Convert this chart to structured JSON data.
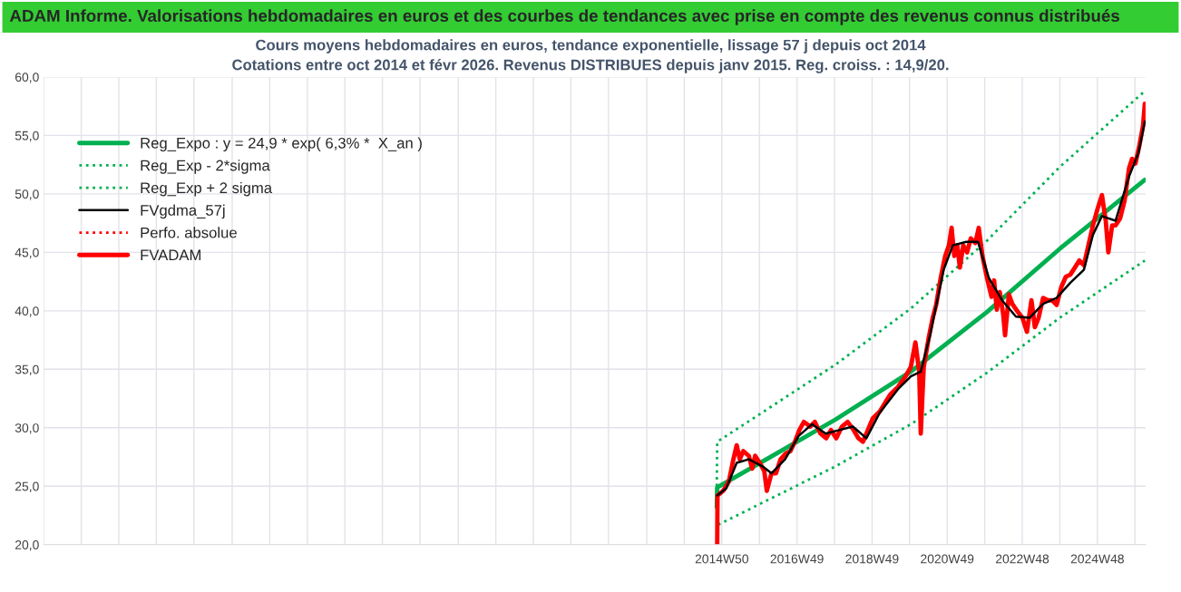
{
  "chart_data": {
    "type": "line",
    "title": "ADAM Informe. Valorisations hebdomadaires en euros et des courbes de tendances avec prise en compte des revenus connus distribués",
    "subtitle": "Cours moyens hebdomadaires en euros, tendance exponentielle, lissage 57 j depuis oct 2014\nCotations entre oct 2014 et févr 2026. Revenus DISTRIBUES depuis janv 2015. Reg. croiss. : 14,9/20.",
    "xlim": [
      "1996-12-09",
      "2026-03-07"
    ],
    "xticks": [
      {
        "value": "1996-12-09",
        "label": null
      },
      {
        "value": "1997-12-08",
        "label": null
      },
      {
        "value": "1998-12-07",
        "label": null
      },
      {
        "value": "1999-12-06",
        "label": null
      },
      {
        "value": "2000-12-04",
        "label": null
      },
      {
        "value": "2001-12-10",
        "label": null
      },
      {
        "value": "2002-12-09",
        "label": null
      },
      {
        "value": "2003-12-08",
        "label": null
      },
      {
        "value": "2004-12-06",
        "label": null
      },
      {
        "value": "2005-12-05",
        "label": null
      },
      {
        "value": "2006-12-04",
        "label": null
      },
      {
        "value": "2007-12-10",
        "label": null
      },
      {
        "value": "2008-12-08",
        "label": null
      },
      {
        "value": "2009-12-07",
        "label": null
      },
      {
        "value": "2010-12-06",
        "label": null
      },
      {
        "value": "2011-12-05",
        "label": null
      },
      {
        "value": "2012-12-10",
        "label": null
      },
      {
        "value": "2013-12-09",
        "label": null
      },
      {
        "value": "2014-12-08",
        "label": "2014W50"
      },
      {
        "value": "2015-12-07",
        "label": null
      },
      {
        "value": "2016-12-05",
        "label": "2016W49"
      },
      {
        "value": "2017-12-04",
        "label": null
      },
      {
        "value": "2018-12-03",
        "label": "2018W49"
      },
      {
        "value": "2019-12-02",
        "label": null
      },
      {
        "value": "2020-11-30",
        "label": "2020W49"
      },
      {
        "value": "2021-11-29",
        "label": null
      },
      {
        "value": "2022-11-28",
        "label": "2022W48"
      },
      {
        "value": "2023-11-27",
        "label": null
      },
      {
        "value": "2024-11-25",
        "label": "2024W48"
      },
      {
        "value": "2025-11-24",
        "label": null
      }
    ],
    "ylim": [
      20,
      60
    ],
    "yticks": [
      {
        "value": 20,
        "label": "20,0"
      },
      {
        "value": 25,
        "label": "25,0"
      },
      {
        "value": 30,
        "label": "30,0"
      },
      {
        "value": 35,
        "label": "35,0"
      },
      {
        "value": 40,
        "label": "40,0"
      },
      {
        "value": 45,
        "label": "45,0"
      },
      {
        "value": 50,
        "label": "50,0"
      },
      {
        "value": 55,
        "label": "55,0"
      },
      {
        "value": 60,
        "label": "60,0"
      }
    ],
    "grid": true,
    "legend": "top left",
    "series": [
      {
        "name": "Reg_Expo : y = 24,9 * exp( 6,3% *  X_an )",
        "color": "#00b050",
        "line_style": "solid",
        "x": [
          "2014-10-20",
          "2014-10-24",
          "2015-12-17",
          "2017-12-14",
          "2019-12-14",
          "2021-12-21",
          "2023-11-26",
          "2026-02-28"
        ],
        "values": [
          23.2,
          24.9,
          27.0,
          30.7,
          34.8,
          39.9,
          45.3,
          51.2
        ]
      },
      {
        "name": "Reg_Exp - 2*sigma",
        "color": "#00b050",
        "line_style": "dotted",
        "x": [
          "2014-11-03",
          "2015-12-17",
          "2017-12-14",
          "2019-12-14",
          "2021-12-21",
          "2023-11-26",
          "2026-02-28"
        ],
        "values": [
          21.7,
          23.5,
          26.7,
          30.3,
          34.7,
          39.4,
          44.3
        ]
      },
      {
        "name": "Reg_Exp + 2 sigma",
        "color": "#00b050",
        "line_style": "dotted",
        "x": [
          "2014-10-20",
          "2014-10-24",
          "2015-12-17",
          "2017-12-14",
          "2019-12-14",
          "2021-12-21",
          "2023-11-26",
          "2026-02-28"
        ],
        "values": [
          25.0,
          28.8,
          31.2,
          35.4,
          40.2,
          46.0,
          52.3,
          58.8
        ]
      },
      {
        "name": "FVgdma_57j",
        "color": "#000000",
        "line_style": "solid",
        "x": [
          "2014-10-24",
          "2015-01-19",
          "2015-05-01",
          "2015-08-26",
          "2016-01-05",
          "2016-04-02",
          "2016-08-12",
          "2016-12-21",
          "2017-05-01",
          "2017-09-10",
          "2018-01-19",
          "2018-05-31",
          "2018-10-09",
          "2019-02-17",
          "2019-08-12",
          "2019-12-14",
          "2020-03-19",
          "2020-06-14",
          "2020-10-27",
          "2021-01-23",
          "2021-06-03",
          "2021-09-24",
          "2022-01-08",
          "2022-05-16",
          "2022-09-28",
          "2023-02-07",
          "2023-06-18",
          "2023-10-27",
          "2024-03-08",
          "2024-07-17",
          "2024-10-13",
          "2025-01-08",
          "2025-05-20",
          "2025-09-28",
          "2025-12-28",
          "2026-02-28"
        ],
        "values": [
          24.2,
          24.8,
          27.0,
          27.3,
          26.7,
          26.1,
          27.3,
          29.3,
          30.3,
          29.5,
          29.8,
          30.1,
          29.1,
          31.3,
          33.3,
          34.4,
          34.8,
          37.8,
          43.5,
          45.6,
          45.9,
          45.9,
          42.8,
          40.9,
          39.5,
          39.4,
          40.6,
          41.1,
          42.4,
          43.5,
          46.5,
          48.1,
          47.7,
          51.5,
          53.5,
          56.2
        ]
      },
      {
        "name": "Perfo. absolue",
        "color": "#ff0000",
        "line_style": "dotted"
      },
      {
        "name": "FVADAM",
        "color": "#ff0000",
        "line_style": "solid",
        "x": [
          "2014-10-24",
          "2014-10-27",
          "2014-12-21",
          "2015-02-14",
          "2015-03-30",
          "2015-05-01",
          "2015-05-31",
          "2015-07-03",
          "2015-08-26",
          "2015-09-28",
          "2015-10-27",
          "2015-12-10",
          "2016-01-23",
          "2016-02-17",
          "2016-04-02",
          "2016-05-16",
          "2016-06-29",
          "2016-08-19",
          "2016-10-02",
          "2016-11-15",
          "2016-12-28",
          "2017-02-10",
          "2017-04-13",
          "2017-05-27",
          "2017-07-21",
          "2017-09-14",
          "2017-10-31",
          "2017-12-21",
          "2018-02-14",
          "2018-04-10",
          "2018-05-31",
          "2018-07-24",
          "2018-09-06",
          "2018-10-09",
          "2018-12-10",
          "2019-02-17",
          "2019-04-13",
          "2019-06-03",
          "2019-08-12",
          "2019-10-24",
          "2019-12-14",
          "2020-01-27",
          "2020-03-04",
          "2020-03-19",
          "2020-04-17",
          "2020-05-31",
          "2020-07-13",
          "2020-08-15",
          "2020-09-28",
          "2020-11-11",
          "2020-12-17",
          "2021-01-12",
          "2021-02-07",
          "2021-03-08",
          "2021-04-02",
          "2021-05-05",
          "2021-06-11",
          "2021-07-17",
          "2021-08-30",
          "2021-10-02",
          "2021-11-07",
          "2021-12-21",
          "2022-02-03",
          "2022-02-28",
          "2022-03-26",
          "2022-04-24",
          "2022-05-27",
          "2022-06-14",
          "2022-07-21",
          "2022-08-23",
          "2022-10-16",
          "2022-11-29",
          "2023-01-12",
          "2023-02-25",
          "2023-03-30",
          "2023-05-05",
          "2023-06-18",
          "2023-08-01",
          "2023-09-14",
          "2023-10-27",
          "2023-12-10",
          "2024-01-23",
          "2024-03-08",
          "2024-04-21",
          "2024-06-03",
          "2024-07-17",
          "2024-08-30",
          "2024-10-13",
          "2024-11-26",
          "2025-01-08",
          "2025-02-14",
          "2025-03-11",
          "2025-04-17",
          "2025-05-20",
          "2025-07-03",
          "2025-08-15",
          "2025-09-28",
          "2025-10-27",
          "2025-11-29",
          "2026-01-05",
          "2026-02-10",
          "2026-02-28"
        ],
        "values": [
          20.0,
          24.2,
          24.6,
          25.4,
          27.3,
          28.5,
          27.3,
          28.0,
          27.6,
          26.5,
          27.6,
          27.0,
          26.3,
          24.6,
          26.1,
          26.1,
          27.3,
          27.8,
          28.0,
          28.8,
          29.8,
          30.5,
          30.1,
          30.5,
          29.5,
          29.1,
          29.8,
          29.1,
          30.1,
          30.5,
          29.9,
          29.1,
          28.8,
          29.5,
          30.8,
          31.4,
          32.2,
          32.9,
          33.5,
          34.4,
          35.2,
          37.3,
          34.8,
          29.5,
          35.2,
          37.5,
          39.4,
          40.5,
          42.8,
          44.7,
          45.6,
          47.1,
          44.7,
          45.6,
          43.7,
          45.6,
          45.0,
          46.2,
          45.8,
          47.1,
          44.7,
          42.8,
          41.2,
          42.6,
          40.1,
          41.6,
          39.7,
          37.9,
          41.4,
          40.6,
          39.9,
          39.4,
          38.2,
          40.9,
          38.6,
          39.4,
          41.1,
          40.9,
          40.9,
          40.5,
          42.0,
          42.9,
          43.1,
          43.7,
          44.3,
          43.9,
          45.6,
          47.3,
          48.7,
          49.9,
          47.7,
          45.0,
          47.3,
          47.3,
          47.9,
          49.4,
          52.2,
          53.0,
          52.6,
          54.1,
          55.8,
          57.7
        ]
      }
    ]
  }
}
